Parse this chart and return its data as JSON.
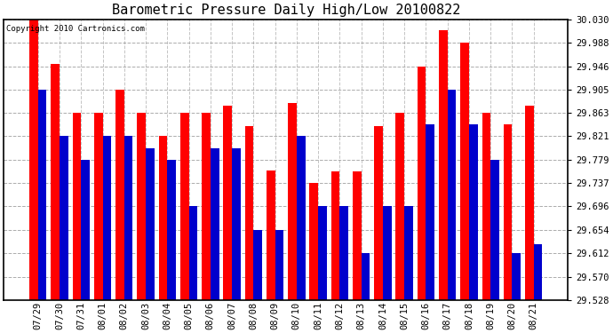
{
  "title": "Barometric Pressure Daily High/Low 20100822",
  "copyright": "Copyright 2010 Cartronics.com",
  "categories": [
    "07/29",
    "07/30",
    "07/31",
    "08/01",
    "08/02",
    "08/03",
    "08/04",
    "08/05",
    "08/06",
    "08/07",
    "08/08",
    "08/09",
    "08/10",
    "08/11",
    "08/12",
    "08/13",
    "08/14",
    "08/15",
    "08/16",
    "08/17",
    "08/18",
    "08/19",
    "08/20",
    "08/21"
  ],
  "highs": [
    30.03,
    29.95,
    29.863,
    29.863,
    29.905,
    29.863,
    29.821,
    29.863,
    29.863,
    29.875,
    29.84,
    29.76,
    29.88,
    29.737,
    29.758,
    29.758,
    29.84,
    29.863,
    29.946,
    30.01,
    29.988,
    29.863,
    29.842,
    29.875
  ],
  "lows": [
    29.905,
    29.821,
    29.779,
    29.821,
    29.821,
    29.8,
    29.779,
    29.696,
    29.8,
    29.8,
    29.654,
    29.654,
    29.821,
    29.696,
    29.696,
    29.612,
    29.696,
    29.696,
    29.842,
    29.905,
    29.842,
    29.779,
    29.612,
    29.628
  ],
  "ylim": [
    29.528,
    30.03
  ],
  "yticks": [
    30.03,
    29.988,
    29.946,
    29.905,
    29.863,
    29.821,
    29.779,
    29.737,
    29.696,
    29.654,
    29.612,
    29.57,
    29.528
  ],
  "bar_width": 0.4,
  "high_color": "#ff0000",
  "low_color": "#0000cc",
  "bg_color": "#ffffff",
  "grid_color": "#888888",
  "title_fontsize": 11,
  "tick_fontsize": 7.5
}
